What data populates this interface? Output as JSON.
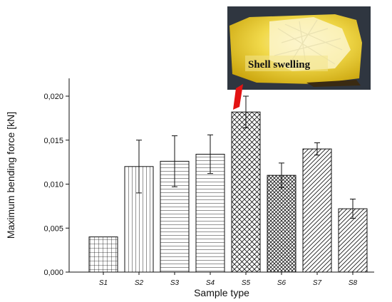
{
  "chart_data": {
    "type": "bar",
    "xlabel": "Sample type",
    "ylabel": "Maximum bending force [kN]",
    "ylim": [
      0,
      0.022
    ],
    "yticks": [
      "0,000",
      "0,005",
      "0,010",
      "0,015",
      "0,020"
    ],
    "ytick_values": [
      0,
      0.005,
      0.01,
      0.015,
      0.02
    ],
    "categories": [
      "S1",
      "S2",
      "S3",
      "S4",
      "S5",
      "S6",
      "S7",
      "S8"
    ],
    "values": [
      0.004,
      0.012,
      0.0126,
      0.0134,
      0.0182,
      0.011,
      0.014,
      0.0072
    ],
    "errors": [
      0,
      0.003,
      0.0029,
      0.0022,
      0.0018,
      0.0014,
      0.0007,
      0.0011
    ],
    "patterns": [
      "grid",
      "vertical",
      "horizontal",
      "horizontal",
      "crosshatch",
      "crosshatch-dense",
      "diagonal",
      "diagonal"
    ],
    "grid": false,
    "legend": "none"
  },
  "inset": {
    "caption": "Shell swelling",
    "points_to": "S5",
    "pointer_color": "#e31313"
  }
}
